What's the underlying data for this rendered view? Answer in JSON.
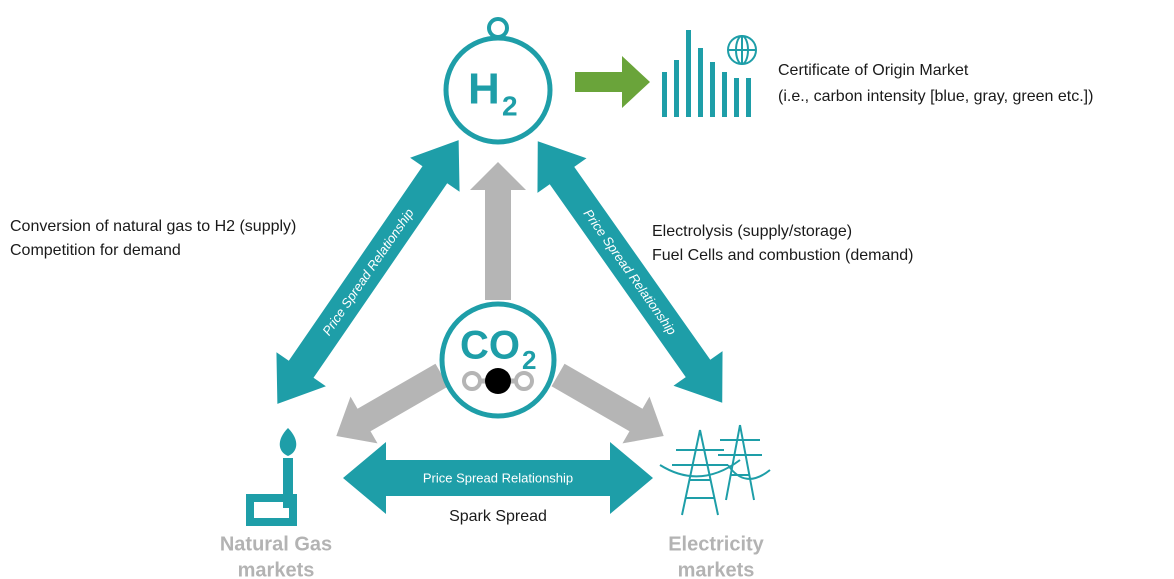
{
  "nodes": {
    "h2": {
      "symbol": "H",
      "subscript": "2"
    },
    "co2": {
      "symbol": "CO",
      "subscript": "2"
    },
    "certificate": {
      "line1": "Certificate of Origin Market",
      "line2": "(i.e., carbon intensity [blue, gray, green etc.])"
    },
    "gas": {
      "line1": "Natural Gas",
      "line2": "markets"
    },
    "electricity": {
      "line1": "Electricity",
      "line2": "markets"
    }
  },
  "links": {
    "left": {
      "label": "Price Spread Relationship",
      "note1": "Conversion of natural gas to H2 (supply)",
      "note2": "Competition for demand"
    },
    "right": {
      "label": "Price Spread Relationship",
      "note1": "Electrolysis (supply/storage)",
      "note2": "Fuel Cells and combustion (demand)"
    },
    "bottom": {
      "label": "Price Spread Relationship",
      "note": "Spark Spread"
    }
  }
}
